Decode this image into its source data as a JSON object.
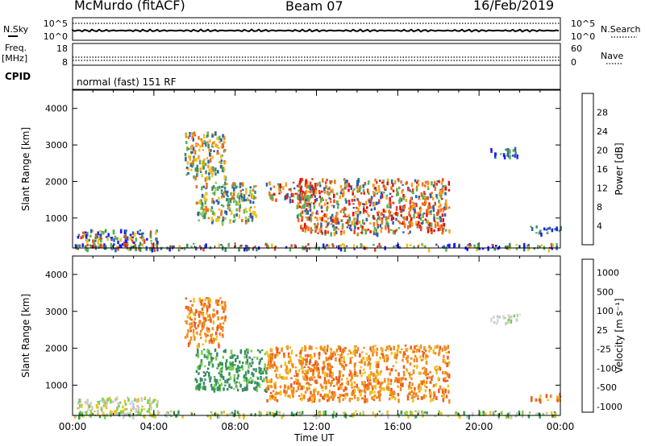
{
  "header": {
    "station": "McMurdo (fitACF)",
    "beam": "Beam 07",
    "date": "16/Feb/2019"
  },
  "left_labels": {
    "nsky": "N.Sky",
    "nsky_ticks": [
      "10^5",
      "10^0"
    ],
    "freq_line1": "Freq.",
    "freq_line2": "[MHz]",
    "freq_ticks": [
      "18",
      "8"
    ],
    "cpid": "CPID"
  },
  "right_labels": {
    "nsearch": "N.Search",
    "nsearch_ticks": [
      "10^5",
      "10^0"
    ],
    "nave": "Nave",
    "nave_ticks": [
      "60",
      "0"
    ]
  },
  "cpid_text": "normal (fast) 151 RF",
  "time_axis": {
    "label": "Time UT",
    "ticks": [
      "00:00",
      "04:00",
      "08:00",
      "12:00",
      "16:00",
      "20:00",
      "00:00"
    ]
  },
  "chart_data": [
    {
      "type": "heatmap",
      "panel": "power",
      "ylabel": "Slant Range [km]",
      "yticks": [
        1000,
        2000,
        3000,
        4000
      ],
      "ylim": [
        180,
        4500
      ],
      "xlim_hours": [
        0,
        24
      ],
      "colorbar": {
        "label": "Power [dB]",
        "ticks": [
          "4",
          "8",
          "12",
          "16",
          "20",
          "24",
          "28"
        ],
        "colors": [
          "#1a1aff",
          "#2b5fb0",
          "#3c8c6a",
          "#58b254",
          "#8ccf4a",
          "#f2c21c",
          "#f5a01e",
          "#ee7020",
          "#e84420",
          "#e01010"
        ]
      },
      "echo_regions": [
        {
          "t": [
            0.2,
            4.2
          ],
          "r": [
            200,
            700
          ],
          "level": "low-mixed"
        },
        {
          "t": [
            5.5,
            7.5
          ],
          "r": [
            2100,
            3400
          ],
          "level": "mid-high"
        },
        {
          "t": [
            6.0,
            9.0
          ],
          "r": [
            900,
            2000
          ],
          "level": "mid"
        },
        {
          "t": [
            9.5,
            12.0
          ],
          "r": [
            1500,
            2000
          ],
          "level": "high"
        },
        {
          "t": [
            11.0,
            18.5
          ],
          "r": [
            600,
            2100
          ],
          "level": "high"
        },
        {
          "t": [
            20.5,
            22.0
          ],
          "r": [
            2700,
            2950
          ],
          "level": "low"
        },
        {
          "t": [
            22.5,
            24.0
          ],
          "r": [
            600,
            800
          ],
          "level": "low"
        },
        {
          "t": [
            0.0,
            24.0
          ],
          "r": [
            180,
            320
          ],
          "level": "low-mixed"
        }
      ]
    },
    {
      "type": "heatmap",
      "panel": "velocity",
      "ylabel": "Slant Range [km]",
      "yticks": [
        1000,
        2000,
        3000,
        4000
      ],
      "ylim": [
        180,
        4500
      ],
      "xlim_hours": [
        0,
        24
      ],
      "colorbar": {
        "label": "Velocity [m s⁻¹]",
        "ticks": [
          "1000",
          "500",
          "100",
          "25",
          "-25",
          "-100",
          "-500",
          "-1000"
        ],
        "colors": [
          "#1a3fbf",
          "#3a8a6a",
          "#2f9a50",
          "#7bd04a",
          "#c8c8c8",
          "#f0c020",
          "#f08a20",
          "#ee5a20",
          "#e01010"
        ]
      },
      "echo_regions": [
        {
          "t": [
            0.2,
            4.2
          ],
          "r": [
            200,
            700
          ],
          "level": "grey-mixed"
        },
        {
          "t": [
            5.5,
            7.5
          ],
          "r": [
            2100,
            3400
          ],
          "level": "orange"
        },
        {
          "t": [
            6.0,
            9.5
          ],
          "r": [
            900,
            2000
          ],
          "level": "green"
        },
        {
          "t": [
            9.5,
            18.5
          ],
          "r": [
            600,
            2100
          ],
          "level": "orange"
        },
        {
          "t": [
            20.5,
            22.0
          ],
          "r": [
            2700,
            2950
          ],
          "level": "grey"
        },
        {
          "t": [
            22.5,
            24.0
          ],
          "r": [
            600,
            800
          ],
          "level": "orange"
        },
        {
          "t": [
            0.0,
            24.0
          ],
          "r": [
            180,
            320
          ],
          "level": "green-grey"
        }
      ]
    }
  ]
}
